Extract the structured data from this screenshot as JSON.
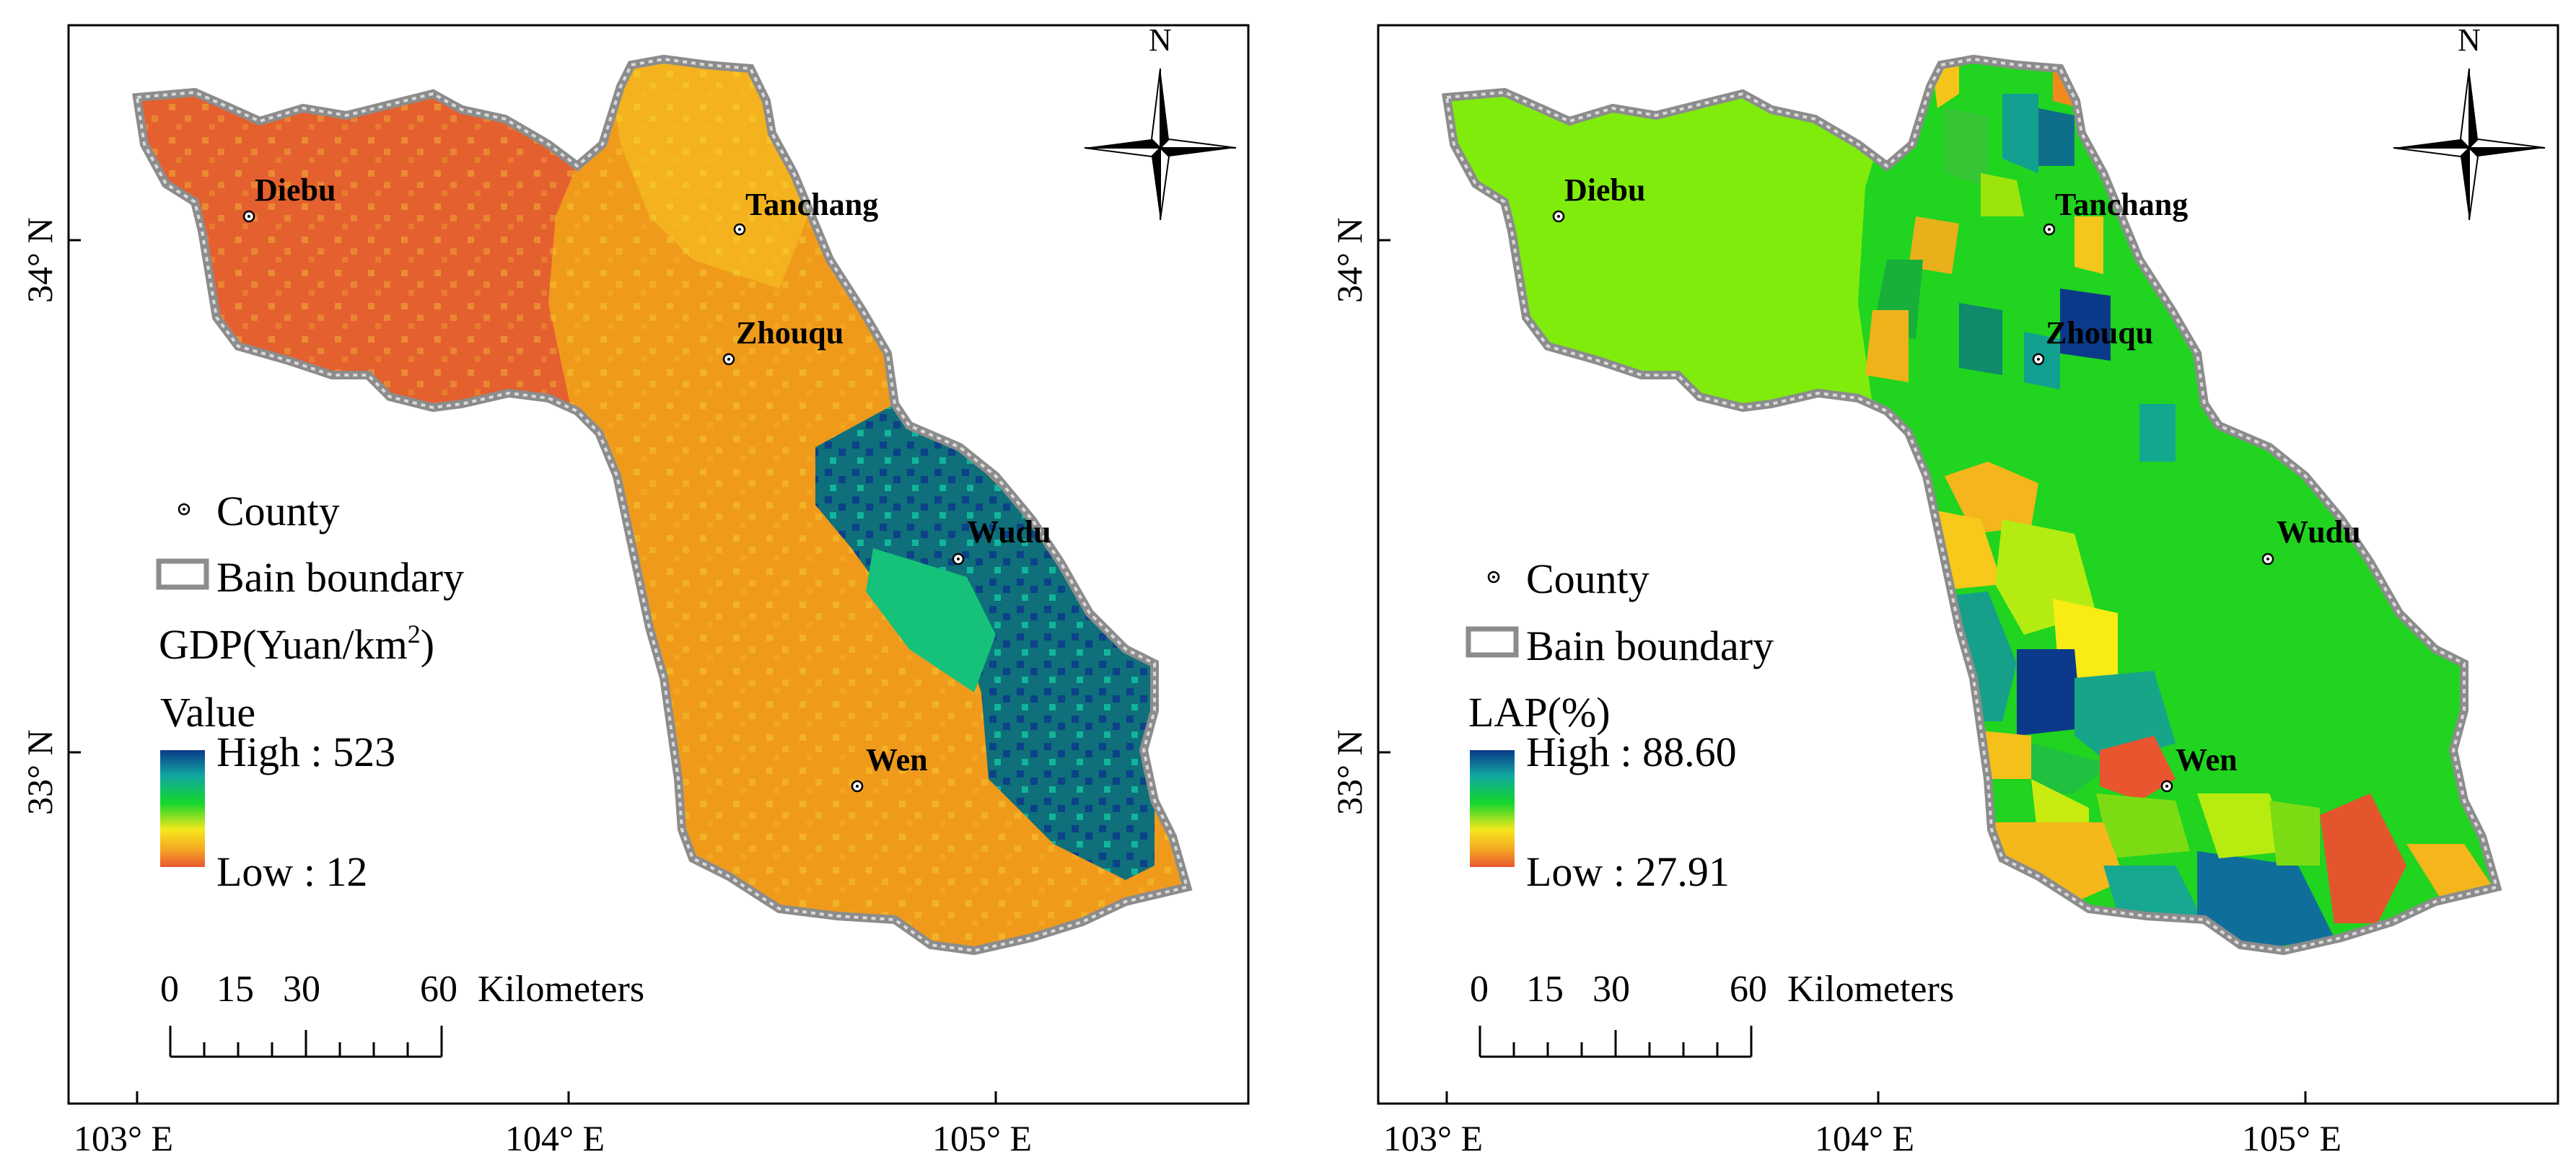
{
  "shared": {
    "longitude_ticks": [
      "103° E",
      "104° E",
      "105° E"
    ],
    "latitude_ticks": [
      "34° N",
      "33° N"
    ],
    "north_label": "N",
    "scale_bar": {
      "labels": [
        "0",
        "15",
        "30",
        "60"
      ],
      "unit": "Kilometers"
    },
    "legend": {
      "county_label": "County",
      "boundary_label": "Bain boundary"
    },
    "counties": [
      {
        "name": "Diebu"
      },
      {
        "name": "Tanchang"
      },
      {
        "name": "Zhouqu"
      },
      {
        "name": "Wudu"
      },
      {
        "name": "Wen"
      }
    ]
  },
  "maps": [
    {
      "id": "gdp",
      "legend_title": "GDP(Yuan/km",
      "legend_title_superscript": "2",
      "legend_title_suffix": ")",
      "legend_subtitle": "Value",
      "high_label": "High : 523",
      "low_label": "Low : 12",
      "high_value": 523,
      "low_value": 12
    },
    {
      "id": "lap",
      "legend_title": "LAP(%)",
      "high_label": "High : 88.60",
      "low_label": "Low : 27.91",
      "high_value": 88.6,
      "low_value": 27.91
    }
  ],
  "colors": {
    "ramp_high": "#0b3a8a",
    "ramp_green": "#13d62d",
    "ramp_yellow": "#f5e81c",
    "ramp_low": "#e8572e",
    "gdp_west": "#e4602f",
    "gdp_mid": "#f09a1c",
    "gdp_high": "#0f6f7a",
    "lap_west": "#7fec0c",
    "lap_main": "#20d420",
    "boundary": "#8c8c8c"
  }
}
